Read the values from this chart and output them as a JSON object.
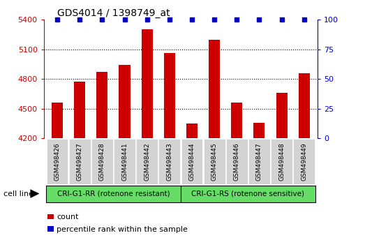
{
  "title": "GDS4014 / 1398749_at",
  "categories": [
    "GSM498426",
    "GSM498427",
    "GSM498428",
    "GSM498441",
    "GSM498442",
    "GSM498443",
    "GSM498444",
    "GSM498445",
    "GSM498446",
    "GSM498447",
    "GSM498448",
    "GSM498449"
  ],
  "bar_values": [
    4560,
    4775,
    4870,
    4940,
    5300,
    5060,
    4350,
    5200,
    4560,
    4360,
    4660,
    4860
  ],
  "percentile_values": [
    100,
    100,
    100,
    100,
    100,
    100,
    100,
    100,
    100,
    100,
    100,
    100
  ],
  "bar_color": "#cc0000",
  "percentile_color": "#0000cc",
  "ylim_left": [
    4200,
    5400
  ],
  "ylim_right": [
    0,
    100
  ],
  "yticks_left": [
    4200,
    4500,
    4800,
    5100,
    5400
  ],
  "yticks_right": [
    0,
    25,
    50,
    75,
    100
  ],
  "group1_label": "CRI-G1-RR (rotenone resistant)",
  "group2_label": "CRI-G1-RS (rotenone sensitive)",
  "group_bg_color": "#66dd66",
  "xlabel_label": "cell line",
  "legend_count_label": "count",
  "legend_percentile_label": "percentile rank within the sample",
  "bar_width": 0.5,
  "left_axis_color": "#cc0000",
  "right_axis_color": "#0000cc",
  "background_color": "#ffffff",
  "xticklabel_bg": "#d3d3d3",
  "grid_lines": [
    4500,
    4800,
    5100
  ],
  "title_fontsize": 10,
  "axis_fontsize": 8,
  "label_fontsize": 7
}
